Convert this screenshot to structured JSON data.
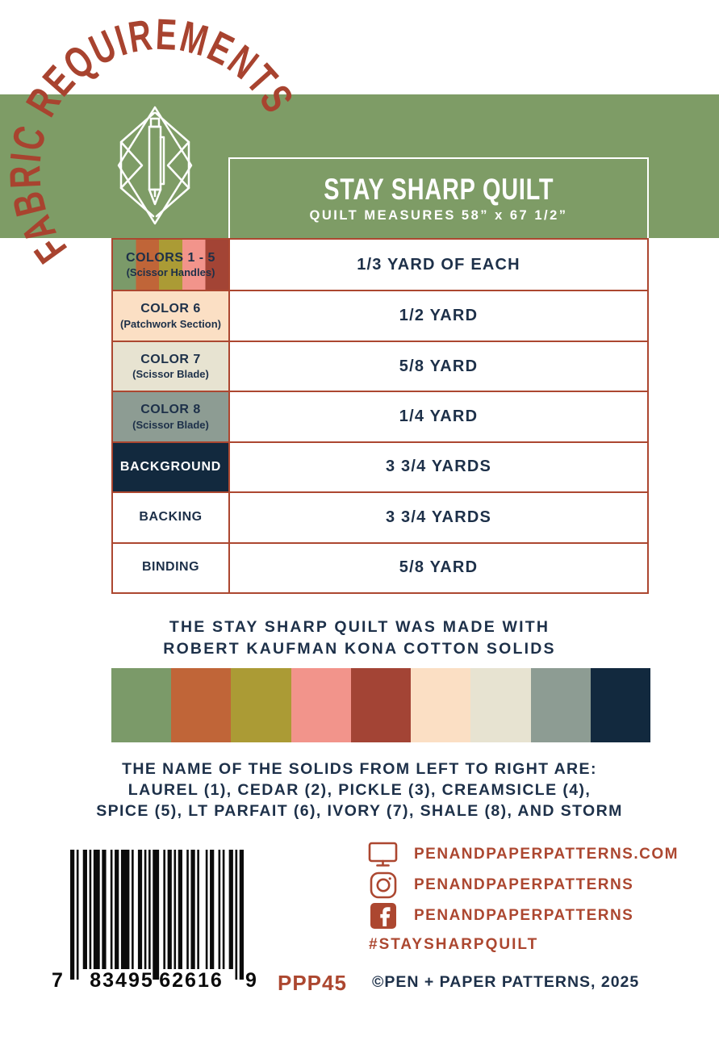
{
  "page": {
    "arch_title": "FABRIC REQUIREMENTS"
  },
  "header": {
    "title": "STAY SHARP QUILT",
    "subtitle": "QUILT MEASURES 58” x 67 1/2”"
  },
  "table": {
    "rows": [
      {
        "label": "COLORS 1 - 5",
        "sublabel": "(Scissor Handles)",
        "value": "1/3 YARD OF EACH",
        "bg": [
          "#7B9A69",
          "#C06538",
          "#AB9B35",
          "#F2948B",
          "#A34435"
        ]
      },
      {
        "label": "COLOR 6",
        "sublabel": "(Patchwork Section)",
        "value": "1/2 YARD",
        "bg": "#FBDFC4"
      },
      {
        "label": "COLOR 7",
        "sublabel": "(Scissor Blade)",
        "value": "5/8 YARD",
        "bg": "#E7E3D1"
      },
      {
        "label": "COLOR 8",
        "sublabel": "(Scissor Blade)",
        "value": "1/4 YARD",
        "bg": "#8D9C93"
      },
      {
        "label": "BACKGROUND",
        "sublabel": "",
        "value": "3 3/4 YARDS",
        "bg": "#12293E"
      },
      {
        "label": "BACKING",
        "sublabel": "",
        "value": "3 3/4 YARDS",
        "bg": "#FFFFFF"
      },
      {
        "label": "BINDING",
        "sublabel": "",
        "value": "5/8 YARD",
        "bg": "#FFFFFF"
      }
    ]
  },
  "kona_note": {
    "line1": "THE STAY SHARP QUILT WAS MADE WITH",
    "line2": "ROBERT KAUFMAN KONA COTTON SOLIDS"
  },
  "palette": {
    "swatches": [
      {
        "name": "laurel",
        "hex": "#7B9A69"
      },
      {
        "name": "cedar",
        "hex": "#C06538"
      },
      {
        "name": "pickle",
        "hex": "#AB9B35"
      },
      {
        "name": "creamsicle",
        "hex": "#F2948B"
      },
      {
        "name": "spice",
        "hex": "#A34435"
      },
      {
        "name": "lt-parfait",
        "hex": "#FBDFC4"
      },
      {
        "name": "ivory",
        "hex": "#E7E3D1"
      },
      {
        "name": "shale",
        "hex": "#8D9C93"
      },
      {
        "name": "storm",
        "hex": "#12293E"
      }
    ]
  },
  "solids_note": {
    "line1": "THE NAME OF THE SOLIDS FROM LEFT TO RIGHT ARE:",
    "line2": "LAUREL (1), CEDAR (2), PICKLE (3), CREAMSICLE (4),",
    "line3": "SPICE (5), LT PARFAIT (6), IVORY (7), SHALE (8), AND STORM"
  },
  "footer": {
    "barcode": {
      "first": "7",
      "group1": "83495",
      "group2": "62616",
      "last": "9"
    },
    "sku": "PPP45",
    "website": "PENANDPAPERPATTERNS.COM",
    "instagram": "PENANDPAPERPATTERNS",
    "facebook": "PENANDPAPERPATTERNS",
    "hashtag": "#STAYSHARPQUILT",
    "copyright": "©PEN + PAPER PATTERNS, 2025"
  },
  "colors": {
    "band_green": "#7E9C66",
    "rust": "#AC4730",
    "navy": "#1D3049",
    "storm": "#12293E"
  }
}
